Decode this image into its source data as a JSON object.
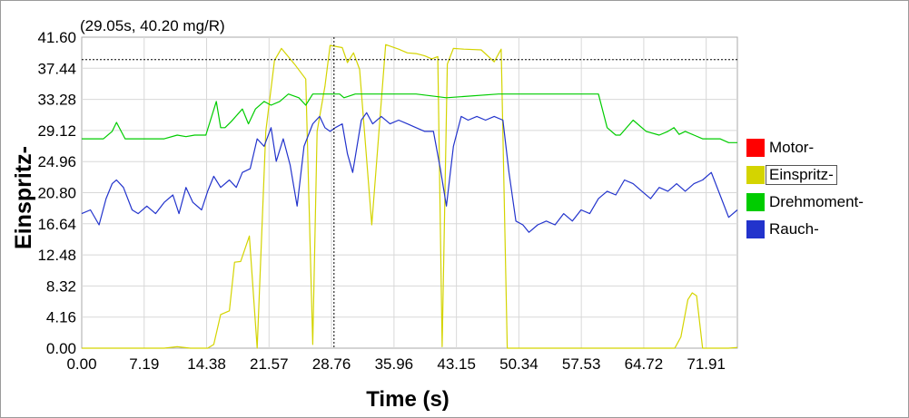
{
  "chart_data": {
    "type": "line",
    "readout": "(29.05s, 40.20 mg/R)",
    "ylabel": "Einspritz-",
    "xlabel": "Time (s)",
    "ylim": [
      0.0,
      41.6
    ],
    "xlim": [
      0.0,
      75.5
    ],
    "yticks": [
      "0.00",
      "4.16",
      "8.32",
      "12.48",
      "16.64",
      "20.80",
      "24.96",
      "29.12",
      "33.28",
      "37.44",
      "41.60"
    ],
    "xticks": [
      "0.00",
      "7.19",
      "14.38",
      "21.57",
      "28.76",
      "35.96",
      "43.15",
      "50.34",
      "57.53",
      "64.72",
      "71.91"
    ],
    "cursor": {
      "x": 29.05,
      "y": 38.6
    },
    "selected_series": "Einspritz-",
    "series": [
      {
        "name": "Motor-",
        "color": "#ff0000",
        "x": [],
        "y": []
      },
      {
        "name": "Einspritz-",
        "color": "#d4d400",
        "x": [
          0.0,
          2.5,
          3.5,
          5.0,
          6.0,
          8.0,
          9.5,
          11.0,
          12.5,
          13.5,
          14.5,
          15.2,
          16.0,
          17.0,
          17.6,
          18.3,
          19.3,
          20.2,
          21.2,
          22.2,
          23.0,
          24.5,
          25.8,
          26.6,
          27.1,
          28.0,
          28.6,
          30.0,
          30.6,
          31.3,
          32.0,
          33.4,
          35.0,
          36.5,
          37.5,
          38.5,
          39.5,
          40.3,
          41.0,
          41.5,
          42.1,
          42.8,
          44.0,
          46.0,
          47.5,
          48.3,
          49.0,
          50.2,
          51.5,
          55.0,
          56.5,
          57.5,
          58.2,
          59.0,
          60.5,
          61.5,
          62.5,
          63.5,
          64.5,
          65.5,
          66.5,
          67.5,
          68.3,
          69.0,
          69.8,
          70.3,
          70.8,
          71.5,
          72.5,
          73.5,
          74.5,
          75.5
        ],
        "y": [
          0.0,
          0.0,
          -1.0,
          -1.0,
          -0.5,
          0.0,
          0.0,
          0.2,
          0.0,
          -0.6,
          -0.6,
          0.5,
          4.5,
          5.0,
          11.5,
          11.6,
          15.0,
          0.0,
          29.0,
          38.5,
          40.1,
          38.0,
          36.0,
          0.5,
          29.0,
          35.0,
          40.5,
          40.2,
          38.2,
          39.5,
          37.3,
          16.5,
          40.6,
          40.0,
          39.5,
          39.4,
          39.1,
          38.7,
          39.0,
          0.2,
          38.0,
          40.1,
          40.0,
          39.9,
          38.3,
          40.0,
          -0.5,
          -0.7,
          -0.5,
          -0.5,
          -0.5,
          -1.0,
          -0.4,
          -0.3,
          -0.5,
          -1.0,
          -0.6,
          -0.4,
          -0.2,
          -0.5,
          -0.6,
          -0.4,
          -0.5,
          1.5,
          6.5,
          7.4,
          7.0,
          0.0,
          -0.5,
          0.0,
          0.0,
          0.1
        ]
      },
      {
        "name": "Drehmoment-",
        "color": "#00cc00",
        "x": [
          0.0,
          2.5,
          3.5,
          4.0,
          5.0,
          6.0,
          8.0,
          9.5,
          11.0,
          12.0,
          13.0,
          14.3,
          15.5,
          16.0,
          16.5,
          17.2,
          18.5,
          19.2,
          20.0,
          21.0,
          21.8,
          22.8,
          23.8,
          25.0,
          25.8,
          26.6,
          27.5,
          28.5,
          29.2,
          29.7,
          30.2,
          31.5,
          38.5,
          42.0,
          48.0,
          54.0,
          56.0,
          57.0,
          59.5,
          60.5,
          61.5,
          62.0,
          63.5,
          65.0,
          66.5,
          67.5,
          68.2,
          68.8,
          69.5,
          70.5,
          71.5,
          72.5,
          73.5,
          74.5,
          75.5
        ],
        "y": [
          28.0,
          28.0,
          29.0,
          30.2,
          28.0,
          28.0,
          28.0,
          28.0,
          28.5,
          28.3,
          28.5,
          28.5,
          33.0,
          29.5,
          29.5,
          30.3,
          32.0,
          30.0,
          32.0,
          33.0,
          32.5,
          33.0,
          34.0,
          33.5,
          32.5,
          34.0,
          34.0,
          34.0,
          34.0,
          34.0,
          33.5,
          34.0,
          34.0,
          33.5,
          34.0,
          34.0,
          34.0,
          34.0,
          34.0,
          29.5,
          28.5,
          28.5,
          30.5,
          29.0,
          28.5,
          29.0,
          29.5,
          28.6,
          29.0,
          28.5,
          28.0,
          28.0,
          28.0,
          27.5,
          27.5
        ]
      },
      {
        "name": "Rauch-",
        "color": "#2233cc",
        "x": [
          0.0,
          1.0,
          2.0,
          2.8,
          3.5,
          4.0,
          4.8,
          5.8,
          6.5,
          7.5,
          8.5,
          9.5,
          10.5,
          11.2,
          12.0,
          12.8,
          13.8,
          14.5,
          15.2,
          16.0,
          17.0,
          17.8,
          18.5,
          19.4,
          20.2,
          21.0,
          21.8,
          22.4,
          23.2,
          24.0,
          24.8,
          25.6,
          26.6,
          27.4,
          28.0,
          28.6,
          29.2,
          30.0,
          30.6,
          31.2,
          32.2,
          32.8,
          33.5,
          34.5,
          35.5,
          36.5,
          37.5,
          38.5,
          39.5,
          40.5,
          41.3,
          42.0,
          42.8,
          43.7,
          44.5,
          45.5,
          46.5,
          47.5,
          48.5,
          49.2,
          50.0,
          50.8,
          51.5,
          52.5,
          53.5,
          54.5,
          55.5,
          56.5,
          57.5,
          58.5,
          59.5,
          60.5,
          61.5,
          62.5,
          63.5,
          64.5,
          65.5,
          66.5,
          67.5,
          68.5,
          69.5,
          70.5,
          71.5,
          72.5,
          73.5,
          74.5,
          75.5
        ],
        "y": [
          18.0,
          18.5,
          16.5,
          20.0,
          22.0,
          22.5,
          21.5,
          18.5,
          18.0,
          19.0,
          18.0,
          19.5,
          20.5,
          18.0,
          21.5,
          19.5,
          18.5,
          21.0,
          23.0,
          21.5,
          22.5,
          21.5,
          23.5,
          24.0,
          28.0,
          27.0,
          29.5,
          25.0,
          28.0,
          24.5,
          19.0,
          27.0,
          30.0,
          31.0,
          29.5,
          29.0,
          29.5,
          30.0,
          26.0,
          23.5,
          30.5,
          31.5,
          30.0,
          31.0,
          30.0,
          30.5,
          30.0,
          29.5,
          29.0,
          29.0,
          24.0,
          19.0,
          27.0,
          31.0,
          30.5,
          31.0,
          30.5,
          31.0,
          30.5,
          23.5,
          17.0,
          16.5,
          15.5,
          16.5,
          17.0,
          16.5,
          18.0,
          17.0,
          18.5,
          18.0,
          20.0,
          21.0,
          20.5,
          22.5,
          22.0,
          21.0,
          20.0,
          21.5,
          21.0,
          22.0,
          21.0,
          22.0,
          22.5,
          23.5,
          20.5,
          17.5,
          18.5
        ]
      }
    ]
  }
}
